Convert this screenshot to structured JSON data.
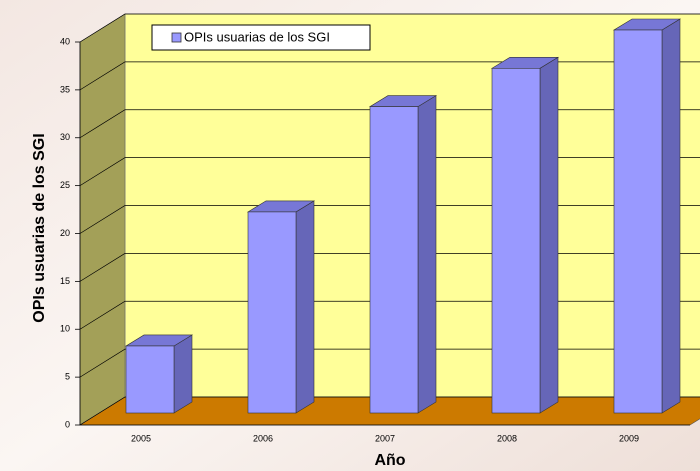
{
  "chart_data": {
    "type": "bar3d",
    "categories": [
      "2005",
      "2006",
      "2007",
      "2008",
      "2009"
    ],
    "series": [
      {
        "name": "OPIs usuarias de los SGI",
        "color": "#9999ff",
        "values": [
          7,
          21,
          32,
          36,
          40
        ]
      }
    ],
    "ylim": [
      0,
      40
    ],
    "yticks": [
      0,
      5,
      10,
      15,
      20,
      25,
      30,
      35,
      40
    ],
    "grid": true,
    "y_label": "OPIs usuarias de los SGI",
    "x_label": "Año",
    "legend": "top-left"
  }
}
